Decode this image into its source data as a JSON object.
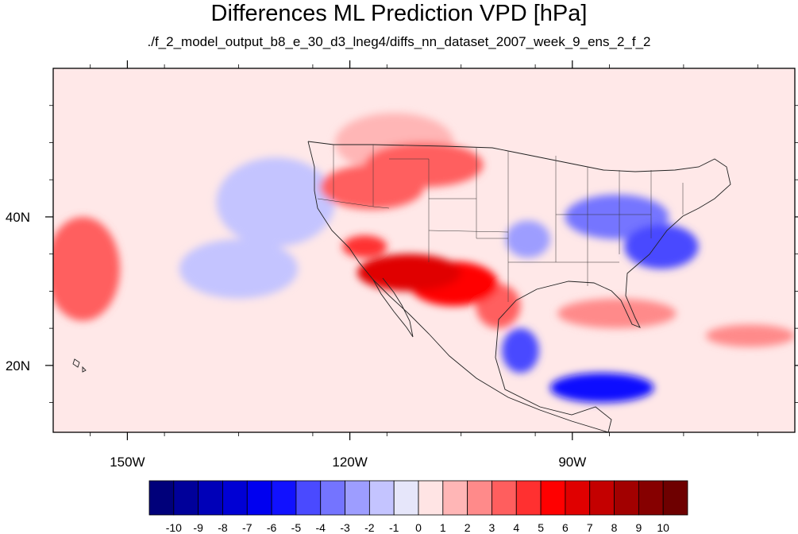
{
  "chart_data": {
    "type": "heatmap",
    "title": "Differences ML Prediction VPD [hPa]",
    "subtitle": "./f_2_model_output_b8_e_30_d3_lneg4/diffs_nn_dataset_2007_week_9_ens_2_f_2",
    "map": {
      "lon_range": [
        -160,
        -60
      ],
      "lat_range": [
        11,
        60
      ],
      "x_ticks": [
        {
          "value": -150,
          "label": "150W"
        },
        {
          "value": -120,
          "label": "120W"
        },
        {
          "value": -90,
          "label": "90W"
        }
      ],
      "y_ticks": [
        {
          "value": 40,
          "label": "40N"
        },
        {
          "value": 20,
          "label": "20N"
        }
      ]
    },
    "colorbar": {
      "labels": [
        "-10",
        "-9",
        "-8",
        "-7",
        "-6",
        "-5",
        "-4",
        "-3",
        "-2",
        "-1",
        "0",
        "1",
        "2",
        "3",
        "4",
        "5",
        "6",
        "7",
        "8",
        "9",
        "10"
      ],
      "colors": [
        "#00007a",
        "#00009a",
        "#0000b8",
        "#0000d4",
        "#0000f0",
        "#1111ff",
        "#4a4aff",
        "#7474ff",
        "#9d9dff",
        "#c4c4ff",
        "#e6e6fa",
        "#ffe4e4",
        "#ffb6b6",
        "#ff8a8a",
        "#ff5e5e",
        "#ff3030",
        "#ff0000",
        "#e00000",
        "#c40000",
        "#a20000",
        "#860000",
        "#6e0000"
      ]
    },
    "field_patches": [
      {
        "lon": -112,
        "lat": 32.5,
        "rlon": 7,
        "rlat": 2.5,
        "value": 6.5
      },
      {
        "lon": -106,
        "lat": 31,
        "rlon": 6,
        "rlat": 3,
        "value": 5.5
      },
      {
        "lon": -118,
        "lat": 36,
        "rlon": 3,
        "rlat": 1.5,
        "value": 4.5
      },
      {
        "lon": -117,
        "lat": 44,
        "rlon": 7,
        "rlat": 3,
        "value": 3
      },
      {
        "lon": -110,
        "lat": 47,
        "rlon": 8,
        "rlat": 3,
        "value": 3.5
      },
      {
        "lon": -114,
        "lat": 50,
        "rlon": 8,
        "rlat": 4,
        "value": 1.5
      },
      {
        "lon": -156,
        "lat": 33,
        "rlon": 5,
        "rlat": 7,
        "value": 3
      },
      {
        "lon": -100,
        "lat": 28,
        "rlon": 3,
        "rlat": 3,
        "value": 3
      },
      {
        "lon": -84,
        "lat": 27,
        "rlon": 8,
        "rlat": 2,
        "value": 2
      },
      {
        "lon": -66,
        "lat": 24,
        "rlon": 6,
        "rlat": 1.5,
        "value": 2.5
      },
      {
        "lon": -78,
        "lat": 36,
        "rlon": 5,
        "rlat": 3,
        "value": -4.5
      },
      {
        "lon": -84,
        "lat": 40,
        "rlon": 7,
        "rlat": 3,
        "value": -3
      },
      {
        "lon": -96,
        "lat": 37,
        "rlon": 3,
        "rlat": 2.5,
        "value": -2.5
      },
      {
        "lon": -86,
        "lat": 17,
        "rlon": 7,
        "rlat": 2,
        "value": -5
      },
      {
        "lon": -97,
        "lat": 22,
        "rlon": 2.5,
        "rlat": 3,
        "value": -4
      },
      {
        "lon": -135,
        "lat": 33,
        "rlon": 8,
        "rlat": 4,
        "value": -1.5
      },
      {
        "lon": -130,
        "lat": 42,
        "rlon": 8,
        "rlat": 6,
        "value": -1
      }
    ]
  }
}
